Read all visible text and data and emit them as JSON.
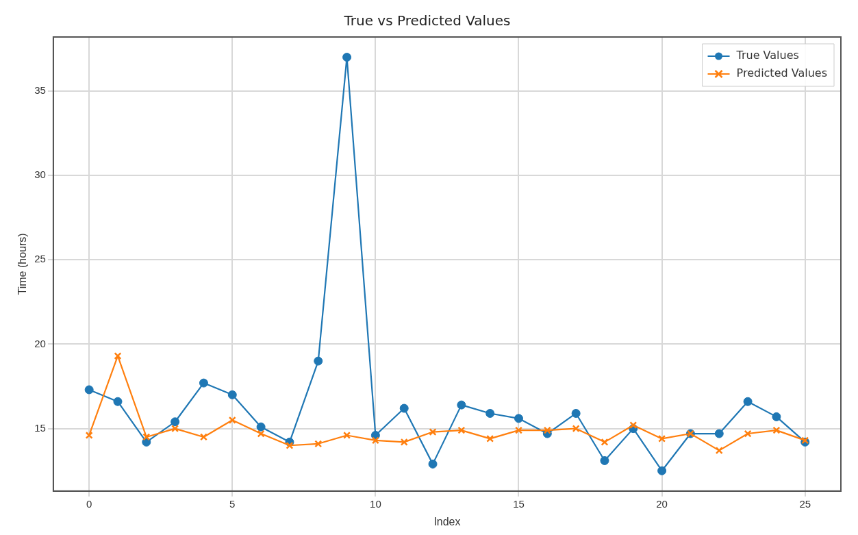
{
  "chart_data": {
    "type": "line",
    "title": "True vs Predicted Values",
    "xlabel": "Index",
    "ylabel": "Time (hours)",
    "x": [
      0,
      1,
      2,
      3,
      4,
      5,
      6,
      7,
      8,
      9,
      10,
      11,
      12,
      13,
      14,
      15,
      16,
      17,
      18,
      19,
      20,
      21,
      22,
      23,
      24,
      25
    ],
    "series": [
      {
        "name": "True Values",
        "color": "#1f77b4",
        "marker": "circle",
        "values": [
          17.3,
          16.6,
          14.2,
          15.4,
          17.7,
          17.0,
          15.1,
          14.2,
          19.0,
          37.0,
          14.6,
          16.2,
          12.9,
          16.4,
          15.9,
          15.6,
          14.7,
          15.9,
          13.1,
          15.0,
          12.5,
          14.7,
          14.7,
          16.6,
          15.7,
          14.2
        ]
      },
      {
        "name": "Predicted Values",
        "color": "#ff7f0e",
        "marker": "cross",
        "values": [
          14.6,
          19.3,
          14.5,
          15.0,
          14.5,
          15.5,
          14.7,
          14.0,
          14.1,
          14.6,
          14.3,
          14.2,
          14.8,
          14.9,
          14.4,
          14.9,
          14.9,
          15.0,
          14.2,
          15.2,
          14.4,
          14.7,
          13.7,
          14.7,
          14.9,
          14.3
        ]
      }
    ],
    "xlim": [
      -1.25,
      26.25
    ],
    "xticks": [
      0,
      5,
      10,
      15,
      20,
      25
    ],
    "ylim": [
      11.3,
      38.2
    ],
    "yticks": [
      15,
      20,
      25,
      30,
      35
    ],
    "grid": true,
    "legend": "top right",
    "line_style": "solid"
  }
}
